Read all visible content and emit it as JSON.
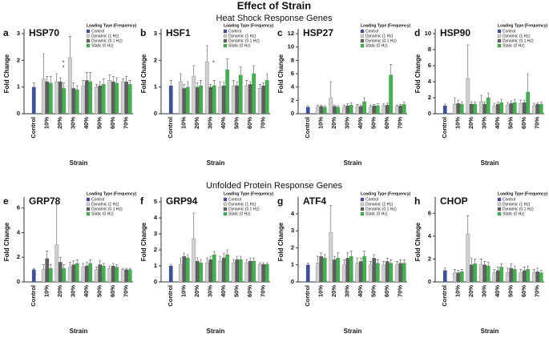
{
  "title": "Effect of Strain",
  "sections": [
    "Heat Shock Response Genes",
    "Unfolded Protein Response Genes"
  ],
  "chart_data": [
    {
      "type": "bar",
      "panel": "a",
      "title": "HSP70",
      "xlabel": "Strain",
      "ylabel": "Fold Change",
      "legend_title": "Loading Type (Frequency)",
      "categories": [
        "Control",
        "10%",
        "20%",
        "30%",
        "40%",
        "50%",
        "60%",
        "70%"
      ],
      "ylim": [
        0,
        3
      ],
      "yticks": [
        0,
        1,
        2,
        3
      ],
      "annotations": [
        "*",
        "*"
      ],
      "series": [
        {
          "name": "Control",
          "color": "#3b4ea0",
          "values": [
            1.0,
            null,
            null,
            null,
            null,
            null,
            null,
            null
          ],
          "errors": [
            0.15,
            null,
            null,
            null,
            null,
            null,
            null,
            null
          ]
        },
        {
          "name": "Dynamic (1 Hz)",
          "color": "#cfcfcf",
          "values": [
            null,
            1.3,
            1.2,
            2.1,
            1.05,
            1.0,
            1.25,
            1.2
          ],
          "errors": [
            null,
            0.95,
            0.3,
            0.8,
            0.2,
            0.1,
            0.2,
            0.1
          ]
        },
        {
          "name": "Dynamic (0.1 Hz)",
          "color": "#5e5e5e",
          "values": [
            null,
            1.2,
            1.2,
            0.95,
            1.25,
            1.05,
            1.2,
            1.2
          ],
          "errors": [
            null,
            0.2,
            0.15,
            0.2,
            0.3,
            0.15,
            0.2,
            0.2
          ]
        },
        {
          "name": "Static (0 Hz)",
          "color": "#3db54a",
          "values": [
            null,
            1.15,
            0.95,
            0.9,
            1.2,
            1.1,
            1.15,
            1.1
          ],
          "errors": [
            null,
            0.25,
            0.2,
            0.15,
            0.35,
            0.2,
            0.2,
            0.15
          ]
        }
      ]
    },
    {
      "type": "bar",
      "panel": "b",
      "title": "HSF1",
      "xlabel": "Strain",
      "ylabel": "Fold Change",
      "legend_title": "Loading Type (Frequency)",
      "categories": [
        "Control",
        "10%",
        "20%",
        "30%",
        "40%",
        "50%",
        "60%",
        "70%"
      ],
      "ylim": [
        0,
        3
      ],
      "yticks": [
        0,
        1,
        2,
        3
      ],
      "annotations": [
        "*"
      ],
      "series": [
        {
          "name": "Control",
          "color": "#3b4ea0",
          "values": [
            1.05,
            null,
            null,
            null,
            null,
            null,
            null,
            null
          ],
          "errors": [
            0.2,
            null,
            null,
            null,
            null,
            null,
            null,
            null
          ]
        },
        {
          "name": "Dynamic (1 Hz)",
          "color": "#cfcfcf",
          "values": [
            null,
            1.2,
            1.4,
            1.95,
            1.0,
            1.05,
            1.05,
            0.95
          ],
          "errors": [
            null,
            0.3,
            0.4,
            0.6,
            0.2,
            0.2,
            0.2,
            0.15
          ]
        },
        {
          "name": "Dynamic (0.1 Hz)",
          "color": "#5e5e5e",
          "values": [
            null,
            0.95,
            1.0,
            1.0,
            1.05,
            1.05,
            1.1,
            1.05
          ],
          "errors": [
            null,
            0.15,
            0.15,
            0.1,
            0.15,
            0.15,
            0.1,
            0.1
          ]
        },
        {
          "name": "Static (0 Hz)",
          "color": "#3db54a",
          "values": [
            null,
            1.0,
            1.05,
            1.05,
            1.65,
            1.45,
            1.5,
            1.25
          ],
          "errors": [
            null,
            0.2,
            0.2,
            0.2,
            0.4,
            0.3,
            0.3,
            0.25
          ]
        }
      ]
    },
    {
      "type": "bar",
      "panel": "c",
      "title": "HSP27",
      "xlabel": "Strain",
      "ylabel": "Fold Change",
      "legend_title": "Loading Type (Frequency)",
      "categories": [
        "Control",
        "10%",
        "20%",
        "30%",
        "40%",
        "50%",
        "60%",
        "70%"
      ],
      "ylim": [
        0,
        12
      ],
      "yticks": [
        0,
        2,
        4,
        6,
        8,
        10,
        12
      ],
      "series": [
        {
          "name": "Control",
          "color": "#3b4ea0",
          "values": [
            1.0,
            null,
            null,
            null,
            null,
            null,
            null,
            null
          ],
          "errors": [
            0.2,
            null,
            null,
            null,
            null,
            null,
            null,
            null
          ]
        },
        {
          "name": "Dynamic (1 Hz)",
          "color": "#cfcfcf",
          "values": [
            null,
            1.0,
            2.4,
            1.0,
            1.1,
            1.0,
            1.2,
            1.1
          ],
          "errors": [
            null,
            0.3,
            2.4,
            0.3,
            0.3,
            0.3,
            0.3,
            0.2
          ]
        },
        {
          "name": "Dynamic (0.1 Hz)",
          "color": "#5e5e5e",
          "values": [
            null,
            1.1,
            1.1,
            1.2,
            1.1,
            1.2,
            1.3,
            1.2
          ],
          "errors": [
            null,
            0.2,
            0.2,
            0.3,
            0.2,
            0.2,
            0.3,
            0.2
          ]
        },
        {
          "name": "Static (0 Hz)",
          "color": "#3db54a",
          "values": [
            null,
            1.0,
            1.0,
            1.3,
            1.8,
            1.2,
            5.8,
            1.4
          ],
          "errors": [
            null,
            0.2,
            0.2,
            0.3,
            0.6,
            0.3,
            1.6,
            0.3
          ]
        }
      ]
    },
    {
      "type": "bar",
      "panel": "d",
      "title": "HSP90",
      "xlabel": "Strain",
      "ylabel": "Fold Change",
      "legend_title": "Loading Type (Frequency)",
      "categories": [
        "Control",
        "10%",
        "20%",
        "30%",
        "40%",
        "50%",
        "60%",
        "70%"
      ],
      "ylim": [
        0,
        10
      ],
      "yticks": [
        0,
        2,
        4,
        6,
        8,
        10
      ],
      "series": [
        {
          "name": "Control",
          "color": "#3b4ea0",
          "values": [
            1.0,
            null,
            null,
            null,
            null,
            null,
            null,
            null
          ],
          "errors": [
            0.2,
            null,
            null,
            null,
            null,
            null,
            null,
            null
          ]
        },
        {
          "name": "Dynamic (1 Hz)",
          "color": "#cfcfcf",
          "values": [
            null,
            1.2,
            4.4,
            1.5,
            1.0,
            1.1,
            1.3,
            1.0
          ],
          "errors": [
            null,
            0.8,
            4.2,
            0.8,
            0.3,
            0.3,
            0.4,
            0.3
          ]
        },
        {
          "name": "Dynamic (0.1 Hz)",
          "color": "#5e5e5e",
          "values": [
            null,
            1.3,
            1.2,
            1.2,
            1.2,
            1.3,
            1.4,
            1.2
          ],
          "errors": [
            null,
            0.4,
            0.3,
            0.3,
            0.3,
            0.3,
            0.3,
            0.2
          ]
        },
        {
          "name": "Static (0 Hz)",
          "color": "#3db54a",
          "values": [
            null,
            1.2,
            1.2,
            2.0,
            1.4,
            1.4,
            2.7,
            1.2
          ],
          "errors": [
            null,
            0.3,
            0.3,
            0.6,
            0.4,
            0.4,
            2.3,
            0.3
          ]
        }
      ]
    },
    {
      "type": "bar",
      "panel": "e",
      "title": "GRP78",
      "xlabel": "Strain",
      "ylabel": "Fold Change",
      "legend_title": "Loading Type (Frequency)",
      "categories": [
        "Control",
        "10%",
        "20%",
        "30%",
        "40%",
        "50%",
        "60%",
        "70%"
      ],
      "ylim": [
        0,
        6.5
      ],
      "yticks": [
        0,
        2,
        4,
        6
      ],
      "series": [
        {
          "name": "Control",
          "color": "#3b4ea0",
          "values": [
            1.0,
            null,
            null,
            null,
            null,
            null,
            null,
            null
          ],
          "errors": [
            0.1,
            null,
            null,
            null,
            null,
            null,
            null,
            null
          ]
        },
        {
          "name": "Dynamic (1 Hz)",
          "color": "#cfcfcf",
          "values": [
            null,
            1.0,
            3.0,
            1.2,
            1.2,
            1.0,
            1.1,
            1.0
          ],
          "errors": [
            null,
            0.4,
            3.3,
            0.4,
            0.3,
            0.2,
            0.2,
            0.1
          ]
        },
        {
          "name": "Dynamic (0.1 Hz)",
          "color": "#5e5e5e",
          "values": [
            null,
            1.9,
            1.6,
            1.4,
            1.3,
            1.4,
            1.3,
            1.0
          ],
          "errors": [
            null,
            0.6,
            0.4,
            0.3,
            0.3,
            0.3,
            0.2,
            0.1
          ]
        },
        {
          "name": "Static (0 Hz)",
          "color": "#3db54a",
          "values": [
            null,
            1.1,
            1.1,
            1.5,
            1.5,
            1.3,
            1.2,
            1.0
          ],
          "errors": [
            null,
            0.3,
            0.3,
            0.3,
            0.3,
            0.2,
            0.2,
            0.1
          ]
        }
      ]
    },
    {
      "type": "bar",
      "panel": "f",
      "title": "GRP94",
      "xlabel": "Strain",
      "ylabel": "Fold Change",
      "legend_title": "Loading Type (Frequency)",
      "categories": [
        "Control",
        "10%",
        "20%",
        "30%",
        "40%",
        "50%",
        "60%",
        "70%"
      ],
      "ylim": [
        0,
        5
      ],
      "yticks": [
        0,
        1,
        2,
        3,
        4,
        5
      ],
      "series": [
        {
          "name": "Control",
          "color": "#3b4ea0",
          "values": [
            1.0,
            null,
            null,
            null,
            null,
            null,
            null,
            null
          ],
          "errors": [
            0.1,
            null,
            null,
            null,
            null,
            null,
            null,
            null
          ]
        },
        {
          "name": "Dynamic (1 Hz)",
          "color": "#cfcfcf",
          "values": [
            null,
            1.1,
            2.7,
            1.2,
            1.3,
            1.2,
            1.2,
            1.1
          ],
          "errors": [
            null,
            0.4,
            1.6,
            0.3,
            0.3,
            0.2,
            0.2,
            0.1
          ]
        },
        {
          "name": "Dynamic (0.1 Hz)",
          "color": "#5e5e5e",
          "values": [
            null,
            1.6,
            1.3,
            1.4,
            1.5,
            1.4,
            1.3,
            1.1
          ],
          "errors": [
            null,
            0.2,
            0.2,
            0.2,
            0.3,
            0.2,
            0.2,
            0.1
          ]
        },
        {
          "name": "Static (0 Hz)",
          "color": "#3db54a",
          "values": [
            null,
            1.5,
            1.2,
            1.7,
            1.7,
            1.4,
            1.3,
            1.1
          ],
          "errors": [
            null,
            0.2,
            0.2,
            0.2,
            0.3,
            0.2,
            0.2,
            0.1
          ]
        }
      ]
    },
    {
      "type": "bar",
      "panel": "g",
      "title": "ATF4",
      "xlabel": "Strain",
      "ylabel": "Fold Change",
      "legend_title": "Loading Type (Frequency)",
      "categories": [
        "Control",
        "10%",
        "20%",
        "30%",
        "40%",
        "50%",
        "60%",
        "70%"
      ],
      "ylim": [
        0,
        4.7
      ],
      "yticks": [
        0,
        1,
        2,
        3,
        4
      ],
      "series": [
        {
          "name": "Control",
          "color": "#3b4ea0",
          "values": [
            1.0,
            null,
            null,
            null,
            null,
            null,
            null,
            null
          ],
          "errors": [
            0.1,
            null,
            null,
            null,
            null,
            null,
            null,
            null
          ]
        },
        {
          "name": "Dynamic (1 Hz)",
          "color": "#cfcfcf",
          "values": [
            null,
            1.1,
            2.9,
            1.0,
            1.1,
            1.0,
            1.0,
            1.0
          ],
          "errors": [
            null,
            0.4,
            1.6,
            0.3,
            0.3,
            0.2,
            0.2,
            0.2
          ]
        },
        {
          "name": "Dynamic (0.1 Hz)",
          "color": "#5e5e5e",
          "values": [
            null,
            1.5,
            1.3,
            1.4,
            1.2,
            1.4,
            1.2,
            1.1
          ],
          "errors": [
            null,
            0.2,
            0.2,
            0.3,
            0.2,
            0.2,
            0.2,
            0.2
          ]
        },
        {
          "name": "Static (0 Hz)",
          "color": "#3db54a",
          "values": [
            null,
            1.4,
            1.4,
            1.5,
            1.5,
            1.1,
            1.1,
            1.1
          ],
          "errors": [
            null,
            0.2,
            0.3,
            0.3,
            0.3,
            0.2,
            0.2,
            0.2
          ]
        }
      ]
    },
    {
      "type": "bar",
      "panel": "h",
      "title": "CHOP",
      "xlabel": "Strain",
      "ylabel": "Fold Change",
      "legend_title": "Loading Type (Frequency)",
      "categories": [
        "Control",
        "10%",
        "20%",
        "30%",
        "40%",
        "50%",
        "60%",
        "70%"
      ],
      "ylim": [
        0,
        7
      ],
      "yticks": [
        0,
        2,
        4,
        6
      ],
      "series": [
        {
          "name": "Control",
          "color": "#3b4ea0",
          "values": [
            1.0,
            null,
            null,
            null,
            null,
            null,
            null,
            null
          ],
          "errors": [
            0.2,
            null,
            null,
            null,
            null,
            null,
            null,
            null
          ]
        },
        {
          "name": "Dynamic (1 Hz)",
          "color": "#cfcfcf",
          "values": [
            null,
            0.8,
            4.2,
            1.5,
            0.8,
            0.8,
            0.8,
            0.8
          ],
          "errors": [
            null,
            0.3,
            1.6,
            0.5,
            0.3,
            0.4,
            0.3,
            0.3
          ]
        },
        {
          "name": "Dynamic (0.1 Hz)",
          "color": "#5e5e5e",
          "values": [
            null,
            0.8,
            1.5,
            1.5,
            1.0,
            1.2,
            1.0,
            0.9
          ],
          "errors": [
            null,
            0.2,
            0.6,
            0.3,
            0.3,
            0.4,
            0.3,
            0.3
          ]
        },
        {
          "name": "Static (0 Hz)",
          "color": "#3db54a",
          "values": [
            null,
            0.9,
            1.6,
            1.4,
            1.3,
            1.1,
            1.1,
            0.8
          ],
          "errors": [
            null,
            0.2,
            0.4,
            0.3,
            0.3,
            0.3,
            0.3,
            0.2
          ]
        }
      ]
    }
  ]
}
